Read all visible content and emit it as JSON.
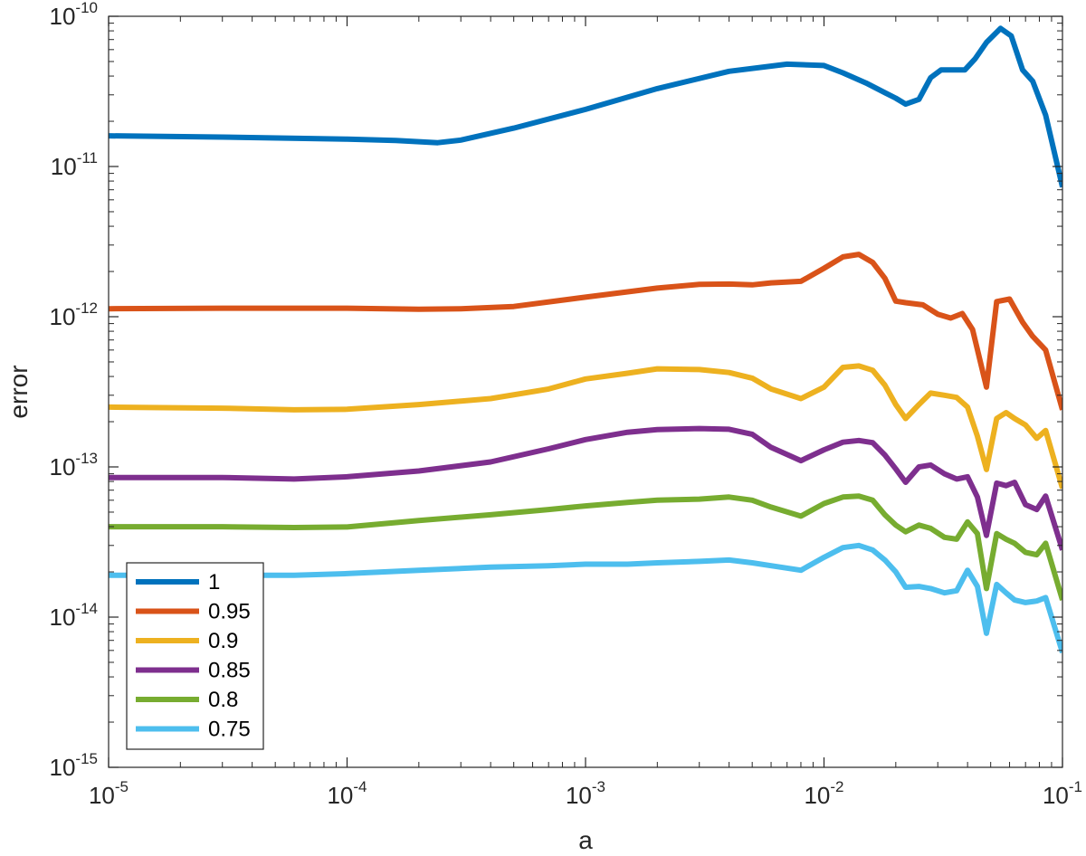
{
  "chart_data": {
    "type": "line",
    "title": "",
    "xlabel": "a",
    "ylabel": "error",
    "xscale": "log",
    "yscale": "log",
    "xlim": [
      1e-05,
      0.1
    ],
    "ylim": [
      1e-15,
      1e-10
    ],
    "grid": false,
    "legend_position": "bottom-left",
    "x_ticks": [
      {
        "value": 1e-05,
        "base": "10",
        "exp": "-5"
      },
      {
        "value": 0.0001,
        "base": "10",
        "exp": "-4"
      },
      {
        "value": 0.001,
        "base": "10",
        "exp": "-3"
      },
      {
        "value": 0.01,
        "base": "10",
        "exp": "-2"
      },
      {
        "value": 0.1,
        "base": "10",
        "exp": "-1"
      }
    ],
    "y_ticks": [
      {
        "value": 1e-15,
        "base": "10",
        "exp": "-15"
      },
      {
        "value": 1e-14,
        "base": "10",
        "exp": "-14"
      },
      {
        "value": 1e-13,
        "base": "10",
        "exp": "-13"
      },
      {
        "value": 1e-12,
        "base": "10",
        "exp": "-12"
      },
      {
        "value": 1e-11,
        "base": "10",
        "exp": "-11"
      },
      {
        "value": 1e-10,
        "base": "10",
        "exp": "-10"
      }
    ],
    "series": [
      {
        "name": "1",
        "color": "#0072BD",
        "x": [
          1e-05,
          3e-05,
          0.0001,
          0.00016,
          0.00024,
          0.0003,
          0.0005,
          0.001,
          0.002,
          0.004,
          0.007,
          0.01,
          0.012,
          0.015,
          0.018,
          0.02,
          0.022,
          0.025,
          0.028,
          0.031,
          0.035,
          0.039,
          0.043,
          0.048,
          0.055,
          0.061,
          0.068,
          0.075,
          0.085,
          0.1
        ],
        "y": [
          1.6e-11,
          1.57e-11,
          1.52e-11,
          1.49e-11,
          1.44e-11,
          1.5e-11,
          1.8e-11,
          2.4e-11,
          3.3e-11,
          4.3e-11,
          4.8e-11,
          4.7e-11,
          4.2e-11,
          3.6e-11,
          3.1e-11,
          2.85e-11,
          2.6e-11,
          2.8e-11,
          3.9e-11,
          4.4e-11,
          4.4e-11,
          4.4e-11,
          5.2e-11,
          6.7e-11,
          8.3e-11,
          7.4e-11,
          4.4e-11,
          3.7e-11,
          2.2e-11,
          7.3e-12
        ]
      },
      {
        "name": "0.95",
        "color": "#D95319",
        "x": [
          1e-05,
          3e-05,
          0.0001,
          0.0002,
          0.0003,
          0.0005,
          0.001,
          0.002,
          0.003,
          0.004,
          0.005,
          0.006,
          0.008,
          0.01,
          0.012,
          0.014,
          0.016,
          0.018,
          0.02,
          0.022,
          0.026,
          0.03,
          0.034,
          0.038,
          0.042,
          0.048,
          0.053,
          0.06,
          0.068,
          0.075,
          0.085,
          0.1
        ],
        "y": [
          1.13e-12,
          1.14e-12,
          1.14e-12,
          1.12e-12,
          1.13e-12,
          1.17e-12,
          1.35e-12,
          1.55e-12,
          1.64e-12,
          1.65e-12,
          1.63e-12,
          1.68e-12,
          1.72e-12,
          2.1e-12,
          2.5e-12,
          2.6e-12,
          2.3e-12,
          1.8e-12,
          1.27e-12,
          1.24e-12,
          1.2e-12,
          1.04e-12,
          9.8e-13,
          1.05e-12,
          8.2e-13,
          3.4e-13,
          1.26e-12,
          1.31e-12,
          9.2e-13,
          7.4e-13,
          6e-13,
          2.4e-13
        ]
      },
      {
        "name": "0.9",
        "color": "#EDB120",
        "x": [
          1e-05,
          3e-05,
          6e-05,
          0.0001,
          0.0002,
          0.0004,
          0.0007,
          0.001,
          0.0015,
          0.002,
          0.003,
          0.004,
          0.005,
          0.006,
          0.008,
          0.01,
          0.012,
          0.014,
          0.016,
          0.018,
          0.02,
          0.022,
          0.025,
          0.028,
          0.032,
          0.036,
          0.04,
          0.044,
          0.048,
          0.053,
          0.058,
          0.063,
          0.07,
          0.078,
          0.085,
          0.1
        ],
        "y": [
          2.5e-13,
          2.46e-13,
          2.4e-13,
          2.42e-13,
          2.6e-13,
          2.85e-13,
          3.3e-13,
          3.85e-13,
          4.2e-13,
          4.5e-13,
          4.45e-13,
          4.25e-13,
          3.9e-13,
          3.3e-13,
          2.85e-13,
          3.4e-13,
          4.6e-13,
          4.7e-13,
          4.4e-13,
          3.5e-13,
          2.6e-13,
          2.1e-13,
          2.6e-13,
          3.1e-13,
          3e-13,
          2.9e-13,
          2.5e-13,
          1.6e-13,
          9.6e-14,
          2.1e-13,
          2.3e-13,
          2.1e-13,
          1.9e-13,
          1.55e-13,
          1.75e-13,
          7.2e-14
        ]
      },
      {
        "name": "0.85",
        "color": "#7E2F8E",
        "x": [
          1e-05,
          3e-05,
          6e-05,
          0.0001,
          0.0002,
          0.0004,
          0.0007,
          0.001,
          0.0015,
          0.002,
          0.003,
          0.004,
          0.005,
          0.006,
          0.008,
          0.01,
          0.012,
          0.014,
          0.016,
          0.018,
          0.02,
          0.022,
          0.025,
          0.028,
          0.032,
          0.036,
          0.04,
          0.044,
          0.048,
          0.053,
          0.058,
          0.063,
          0.07,
          0.078,
          0.085,
          0.1
        ],
        "y": [
          8.5e-14,
          8.5e-14,
          8.3e-14,
          8.6e-14,
          9.4e-14,
          1.08e-13,
          1.32e-13,
          1.52e-13,
          1.7e-13,
          1.77e-13,
          1.8e-13,
          1.78e-13,
          1.65e-13,
          1.35e-13,
          1.1e-13,
          1.3e-13,
          1.46e-13,
          1.5e-13,
          1.45e-13,
          1.2e-13,
          9.7e-14,
          7.9e-14,
          1e-13,
          1.03e-13,
          9e-14,
          8.3e-14,
          8.6e-14,
          6.3e-14,
          3.5e-14,
          7.8e-14,
          7.5e-14,
          7.9e-14,
          5.6e-14,
          5.2e-14,
          6.4e-14,
          2.8e-14
        ]
      },
      {
        "name": "0.8",
        "color": "#77AC30",
        "x": [
          1e-05,
          3e-05,
          6e-05,
          0.0001,
          0.0002,
          0.0004,
          0.0007,
          0.001,
          0.0015,
          0.002,
          0.003,
          0.004,
          0.005,
          0.006,
          0.008,
          0.01,
          0.012,
          0.014,
          0.016,
          0.018,
          0.02,
          0.022,
          0.025,
          0.028,
          0.032,
          0.036,
          0.04,
          0.044,
          0.048,
          0.053,
          0.058,
          0.063,
          0.07,
          0.078,
          0.085,
          0.1
        ],
        "y": [
          4e-14,
          4e-14,
          3.95e-14,
          3.98e-14,
          4.4e-14,
          4.8e-14,
          5.2e-14,
          5.5e-14,
          5.8e-14,
          6e-14,
          6.1e-14,
          6.3e-14,
          6e-14,
          5.4e-14,
          4.7e-14,
          5.7e-14,
          6.3e-14,
          6.4e-14,
          6e-14,
          4.8e-14,
          4.1e-14,
          3.7e-14,
          4.1e-14,
          3.9e-14,
          3.4e-14,
          3.3e-14,
          4.3e-14,
          3.6e-14,
          1.55e-14,
          3.6e-14,
          3.3e-14,
          3.1e-14,
          2.7e-14,
          2.6e-14,
          3.1e-14,
          1.3e-14
        ]
      },
      {
        "name": "0.75",
        "color": "#4DBEEE",
        "x": [
          1e-05,
          3e-05,
          6e-05,
          0.0001,
          0.0002,
          0.0004,
          0.0007,
          0.001,
          0.0015,
          0.002,
          0.003,
          0.004,
          0.005,
          0.006,
          0.008,
          0.01,
          0.012,
          0.014,
          0.016,
          0.018,
          0.02,
          0.022,
          0.025,
          0.028,
          0.032,
          0.036,
          0.04,
          0.044,
          0.048,
          0.053,
          0.058,
          0.063,
          0.07,
          0.078,
          0.085,
          0.1
        ],
        "y": [
          1.9e-14,
          1.9e-14,
          1.9e-14,
          1.95e-14,
          2.05e-14,
          2.15e-14,
          2.2e-14,
          2.25e-14,
          2.25e-14,
          2.3e-14,
          2.35e-14,
          2.4e-14,
          2.3e-14,
          2.2e-14,
          2.05e-14,
          2.5e-14,
          2.9e-14,
          3e-14,
          2.8e-14,
          2.4e-14,
          2e-14,
          1.58e-14,
          1.6e-14,
          1.55e-14,
          1.45e-14,
          1.5e-14,
          2.05e-14,
          1.6e-14,
          7.8e-15,
          1.65e-14,
          1.45e-14,
          1.3e-14,
          1.25e-14,
          1.28e-14,
          1.35e-14,
          5.8e-15
        ]
      }
    ]
  }
}
